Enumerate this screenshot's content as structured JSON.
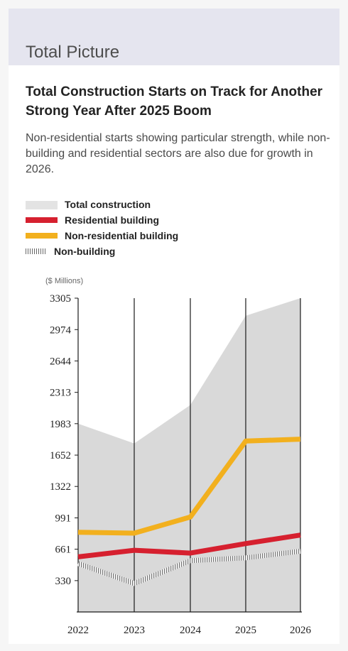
{
  "header": {
    "section_title": "Total Picture",
    "headline": "Total Construction Starts on Track for Another Strong Year After 2025 Boom",
    "description": "Non-residential starts showing particular strength, while non-building and residential sectors are also due for growth in 2026."
  },
  "colors": {
    "band": "#e5e5ef",
    "total_fill": "#d9d9d9",
    "residential": "#d6202f",
    "non_residential": "#f2b01e",
    "non_building": "#9a9a9a"
  },
  "chart_data": {
    "type": "line",
    "unit_label": "($ Millions)",
    "categories": [
      "2022",
      "2023",
      "2024",
      "2025",
      "2026"
    ],
    "yticks": [
      "3305",
      "2974",
      "2644",
      "2313",
      "1983",
      "1652",
      "1322",
      "991",
      "661",
      "330"
    ],
    "ylim": [
      0,
      3305
    ],
    "grid": "vertical",
    "legend_position": "top-left",
    "series": [
      {
        "name": "Total construction",
        "style": "area",
        "values": [
          1983,
          1775,
          2180,
          3120,
          3305
        ]
      },
      {
        "name": "Residential building",
        "style": "line",
        "values": [
          580,
          650,
          620,
          720,
          810
        ]
      },
      {
        "name": "Non-residential building",
        "style": "line",
        "values": [
          840,
          830,
          1000,
          1800,
          1820
        ]
      },
      {
        "name": "Non-building",
        "style": "hatched",
        "values": [
          510,
          300,
          540,
          570,
          640
        ]
      }
    ]
  }
}
